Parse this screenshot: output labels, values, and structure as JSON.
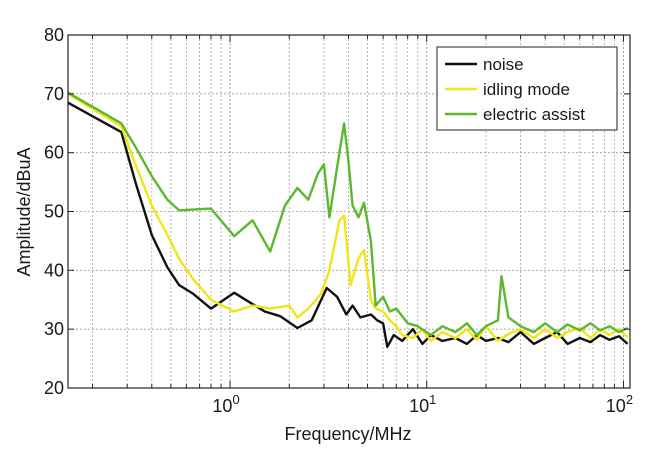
{
  "chart_data": {
    "type": "line",
    "xlabel": "Frequency/MHz",
    "ylabel": "Amplitude/dBuA",
    "xscale": "log",
    "xlim": [
      0.15,
      108
    ],
    "ylim": [
      20,
      80
    ],
    "yticks": [
      20,
      30,
      40,
      50,
      60,
      70,
      80
    ],
    "xticks": [
      {
        "value": 1,
        "base": "10",
        "exp": "0"
      },
      {
        "value": 10,
        "base": "10",
        "exp": "1"
      },
      {
        "value": 100,
        "base": "10",
        "exp": "2"
      }
    ],
    "grid": true,
    "legend": "top-right",
    "series": [
      {
        "name": "noise",
        "color": "#111111",
        "x": [
          0.15,
          0.28,
          0.33,
          0.4,
          0.48,
          0.55,
          0.65,
          0.8,
          1.05,
          1.2,
          1.5,
          1.8,
          2.2,
          2.6,
          3.1,
          3.5,
          3.9,
          4.2,
          4.6,
          5.2,
          5.6,
          6.0,
          6.3,
          6.8,
          7.5,
          8.5,
          9.5,
          10.5,
          12,
          14,
          16,
          18,
          20,
          23,
          26,
          30,
          35,
          40,
          46,
          52,
          60,
          68,
          76,
          85,
          95,
          105
        ],
        "y": [
          68.5,
          63.5,
          55,
          46,
          40.5,
          37.5,
          36,
          33.5,
          36.2,
          35,
          33,
          32.2,
          30.2,
          31.5,
          37,
          35.5,
          32.5,
          34,
          32,
          32.5,
          31.5,
          31,
          27,
          29,
          28,
          30,
          27.5,
          29,
          28,
          28.5,
          27.5,
          29,
          28,
          28.5,
          27.8,
          29.5,
          27.5,
          28.5,
          29.5,
          27.5,
          28.5,
          27.8,
          29,
          28.2,
          28.8,
          27.5
        ]
      },
      {
        "name": "idling mode",
        "color": "#f2e514",
        "x": [
          0.15,
          0.28,
          0.33,
          0.4,
          0.48,
          0.55,
          0.65,
          0.8,
          1.05,
          1.3,
          1.6,
          2.0,
          2.2,
          2.5,
          2.9,
          3.2,
          3.6,
          3.8,
          4.1,
          4.5,
          4.8,
          5.2,
          5.5,
          6.0,
          6.5,
          7.0,
          7.5,
          8.5,
          9.5,
          10.5,
          12,
          14,
          16,
          18,
          20,
          23,
          26,
          30,
          35,
          40,
          46,
          52,
          60,
          68,
          76,
          85,
          95,
          105
        ],
        "y": [
          70,
          64.5,
          58,
          51,
          46,
          42,
          38.5,
          35,
          33,
          34,
          33.5,
          34,
          32,
          33.5,
          36,
          40,
          48.5,
          49.3,
          37.5,
          42,
          43.5,
          35,
          33.5,
          33,
          31.5,
          30.5,
          29,
          28.5,
          30,
          28,
          29.5,
          28.5,
          30,
          28.2,
          30.5,
          28,
          29.2,
          30,
          28.5,
          30,
          28.5,
          29.5,
          30.2,
          28.5,
          30,
          29,
          30,
          28.6
        ]
      },
      {
        "name": "electric assist",
        "color": "#5cb82e",
        "x": [
          0.15,
          0.28,
          0.33,
          0.4,
          0.48,
          0.55,
          0.8,
          1.05,
          1.3,
          1.6,
          1.9,
          2.2,
          2.5,
          2.8,
          3.0,
          3.2,
          3.5,
          3.8,
          4.0,
          4.2,
          4.5,
          4.8,
          5.2,
          5.5,
          6.0,
          6.5,
          7.0,
          8.0,
          9.0,
          10.5,
          12,
          14,
          16,
          18,
          20,
          23,
          24,
          26,
          30,
          35,
          40,
          46,
          52,
          60,
          68,
          76,
          85,
          95,
          105
        ],
        "y": [
          70.2,
          65,
          61,
          56,
          52,
          50.2,
          50.5,
          45.8,
          48.5,
          43.2,
          51,
          54,
          52,
          56.5,
          58,
          49,
          57.5,
          65,
          58.5,
          51,
          49,
          51.5,
          45,
          34,
          35.5,
          33,
          33.5,
          31,
          30.5,
          29,
          30.5,
          29.5,
          31,
          29,
          30.5,
          31.5,
          39,
          32,
          30.5,
          29.5,
          31,
          29.5,
          30.8,
          29.8,
          31,
          29.8,
          30.5,
          29.5,
          30.2
        ]
      }
    ]
  }
}
